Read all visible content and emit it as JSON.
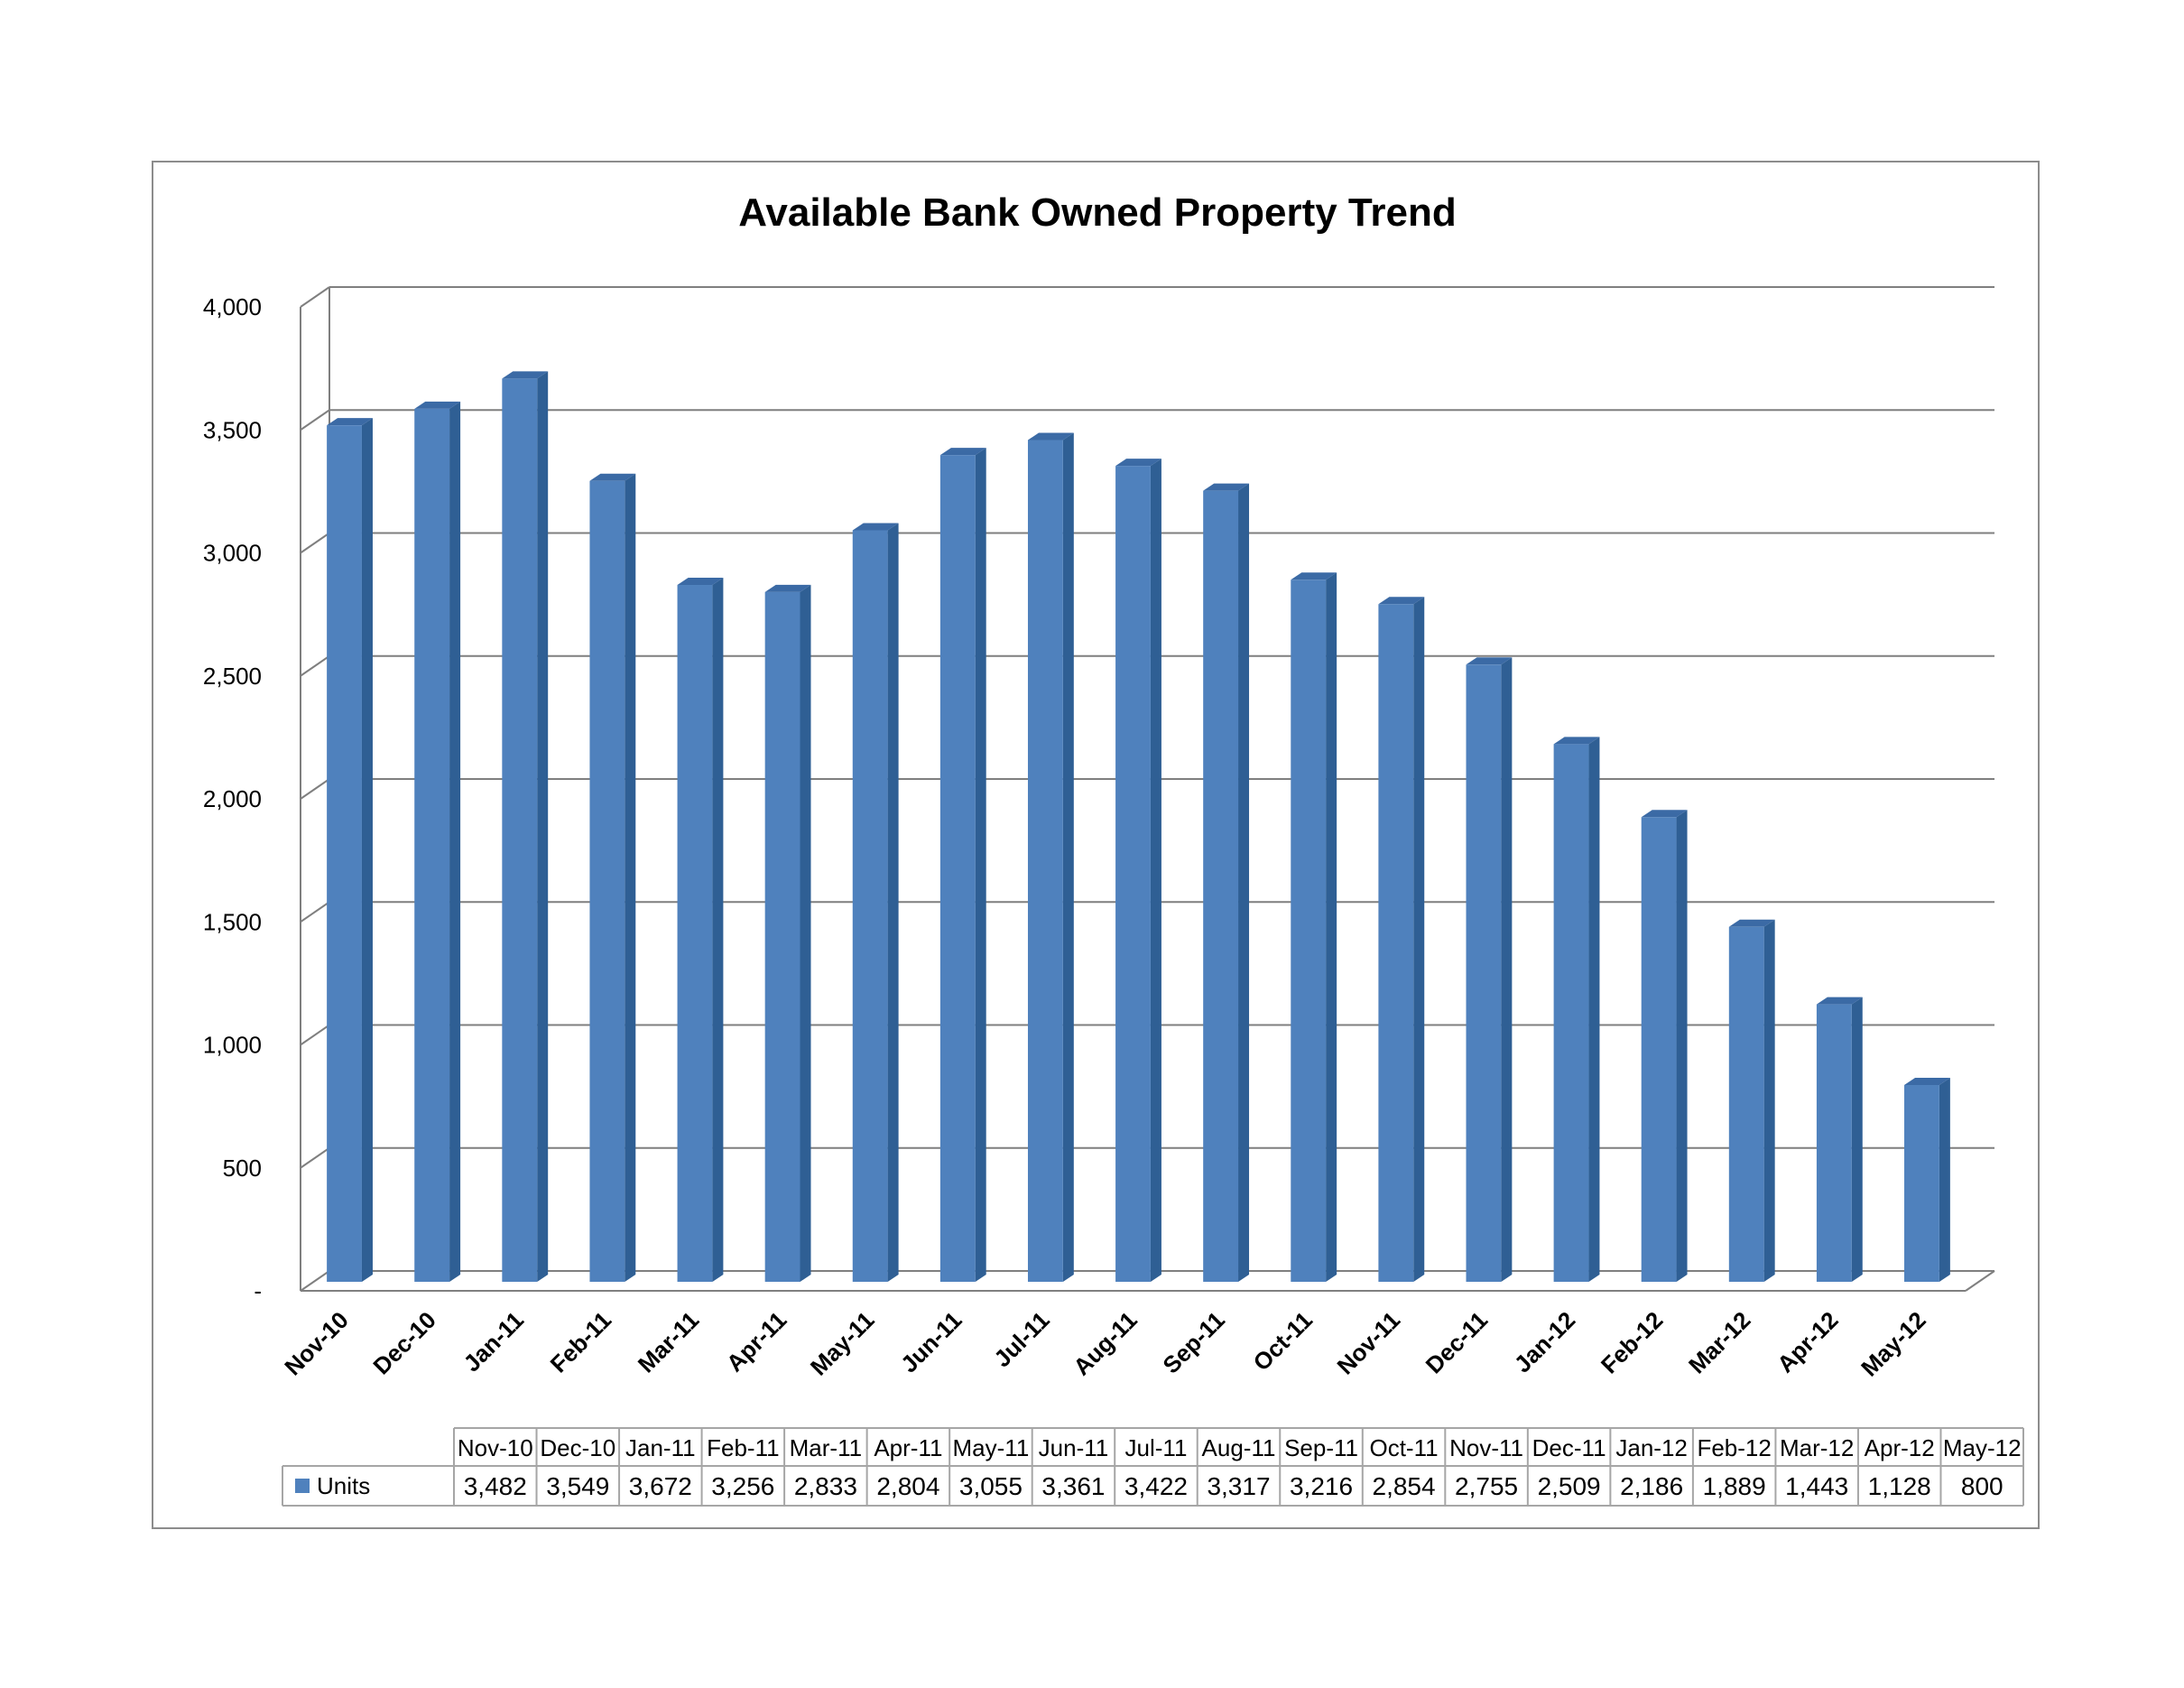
{
  "chart_data": {
    "type": "bar",
    "title": "Available Bank Owned Property Trend",
    "xlabel": "",
    "ylabel": "",
    "ylim": [
      0,
      4000
    ],
    "yticks": [
      0,
      500,
      1000,
      1500,
      2000,
      2500,
      3000,
      3500,
      4000
    ],
    "ytick_labels": [
      "-",
      "500",
      "1,000",
      "1,500",
      "2,000",
      "2,500",
      "3,000",
      "3,500",
      "4,000"
    ],
    "grid": true,
    "three_d": true,
    "legend_placement": "data-table",
    "categories": [
      "Nov-10",
      "Dec-10",
      "Jan-11",
      "Feb-11",
      "Mar-11",
      "Apr-11",
      "May-11",
      "Jun-11",
      "Jul-11",
      "Aug-11",
      "Sep-11",
      "Oct-11",
      "Nov-11",
      "Dec-11",
      "Jan-12",
      "Feb-12",
      "Mar-12",
      "Apr-12",
      "May-12"
    ],
    "series": [
      {
        "name": "Units",
        "color": "#4f81bd",
        "values": [
          3482,
          3549,
          3672,
          3256,
          2833,
          2804,
          3055,
          3361,
          3422,
          3317,
          3216,
          2854,
          2755,
          2509,
          2186,
          1889,
          1443,
          1128,
          800
        ],
        "value_labels": [
          "3,482",
          "3,549",
          "3,672",
          "3,256",
          "2,833",
          "2,804",
          "3,055",
          "3,361",
          "3,422",
          "3,317",
          "3,216",
          "2,854",
          "2,755",
          "2,509",
          "2,186",
          "1,889",
          "1,443",
          "1,128",
          "800"
        ]
      }
    ]
  },
  "colors": {
    "bar_front": "#4f81bd",
    "bar_side": "#2f5f94",
    "bar_top": "#3b6aa5",
    "gridline": "#7f7f7f",
    "frame_border": "#8c8c8c",
    "table_border": "#a6a6a6"
  }
}
